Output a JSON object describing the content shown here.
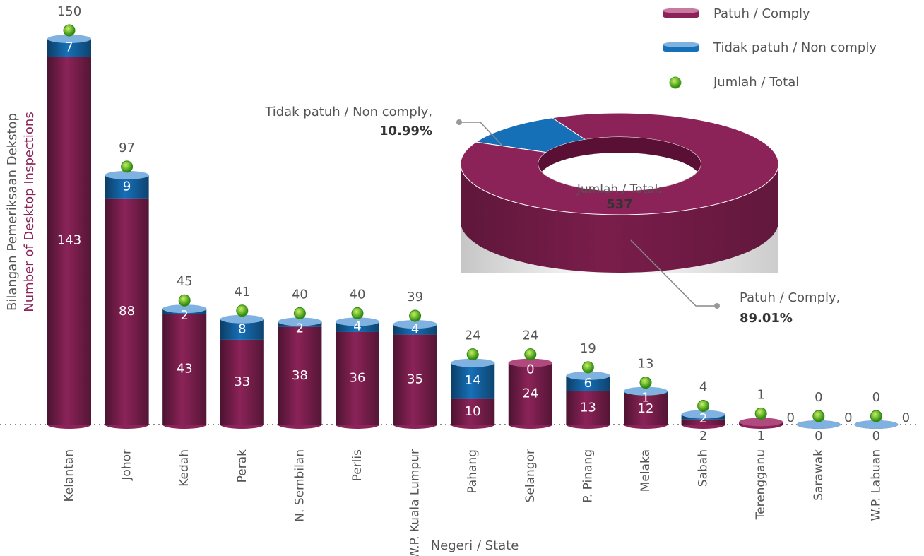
{
  "chart_data": [
    {
      "type": "bar",
      "x_label": "Negeri / State",
      "y_label": [
        "Bilangan Pemeriksaan Dekstop",
        "Number of Desktop Inspections"
      ],
      "categories": [
        "Kelantan",
        "Johor",
        "Kedah",
        "Perak",
        "N. Sembilan",
        "Perlis",
        "W.P. Kuala Lumpur",
        "Pahang",
        "Selangor",
        "P. Pinang",
        "Melaka",
        "Sabah",
        "Terengganu",
        "Sarawak",
        "W.P. Labuan"
      ],
      "series": [
        {
          "name": "Patuh / Comply",
          "color": "#8b2358",
          "values": [
            143,
            88,
            43,
            33,
            38,
            36,
            35,
            10,
            24,
            13,
            12,
            2,
            1,
            0,
            0
          ]
        },
        {
          "name": "Tidak patuh / Non comply",
          "color": "#1670b8",
          "values": [
            7,
            9,
            2,
            8,
            2,
            4,
            4,
            14,
            0,
            6,
            1,
            2,
            0,
            0,
            0
          ]
        }
      ],
      "totals": {
        "name": "Jumlah / Total",
        "color": "#4caf20",
        "values": [
          150,
          97,
          45,
          41,
          40,
          40,
          39,
          24,
          24,
          19,
          13,
          4,
          1,
          0,
          0
        ]
      }
    },
    {
      "type": "pie",
      "labels": [
        "Patuh / Comply,",
        "Tidak patuh / Non comply,"
      ],
      "values": [
        89.01,
        10.99
      ],
      "value_labels": [
        "89.01%",
        "10.99%"
      ],
      "colors": [
        "#8b2358",
        "#1670b8"
      ],
      "center_label": "Jumlah / Total:",
      "total": 537
    }
  ]
}
